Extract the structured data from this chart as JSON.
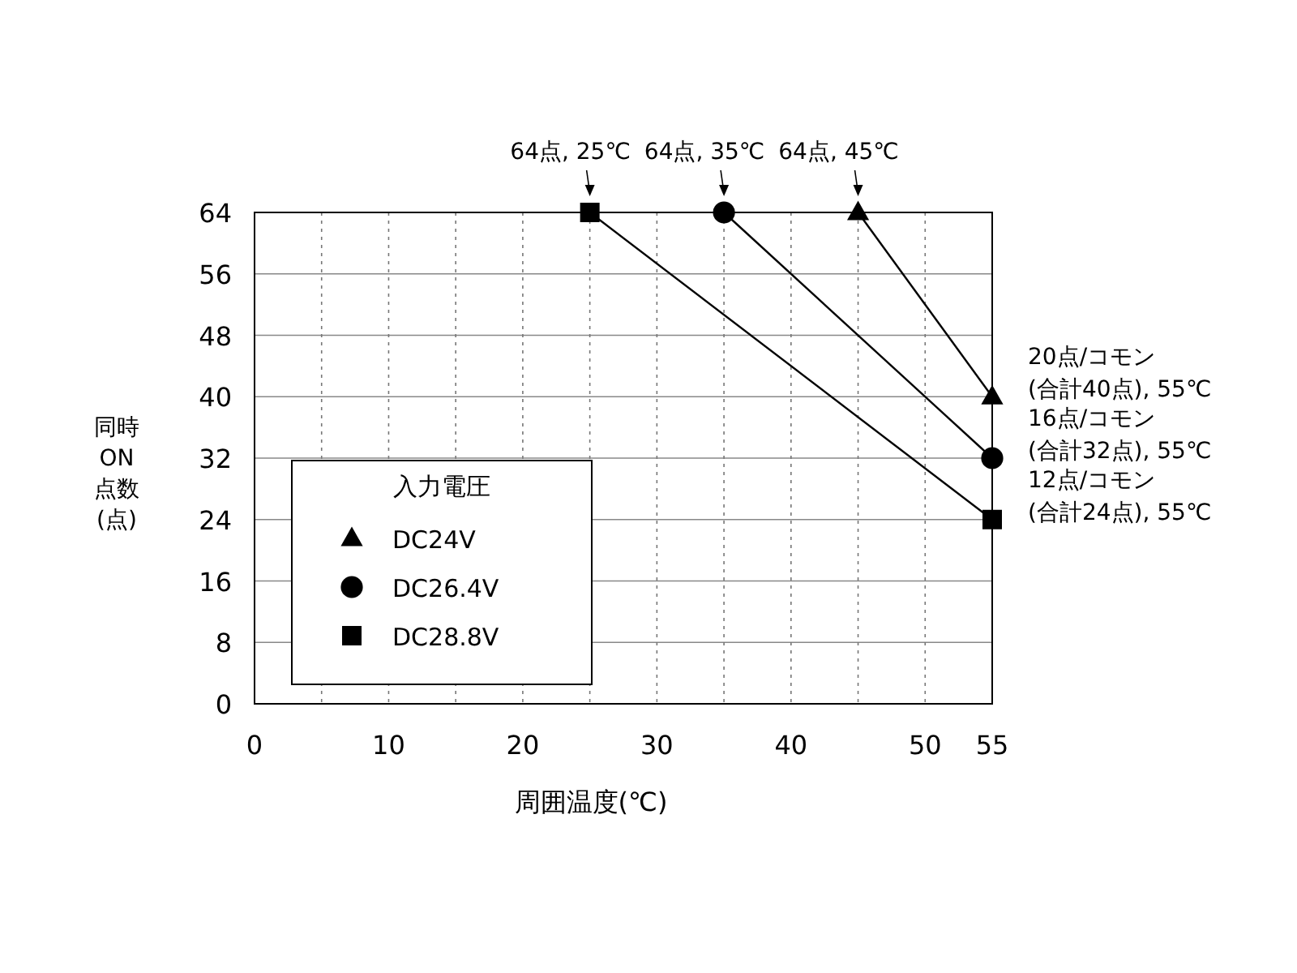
{
  "chart_data": {
    "type": "line",
    "xlabel": "周囲温度(℃)",
    "ylabel": "同時\nON\n点数\n(点)",
    "legend_title": "入力電圧",
    "xlim": [
      0,
      55
    ],
    "xticks": [
      0,
      {
        "value": 5,
        "label": null
      },
      10,
      {
        "value": 15,
        "label": null
      },
      20,
      {
        "value": 25,
        "label": null
      },
      30,
      {
        "value": 35,
        "label": null
      },
      40,
      {
        "value": 45,
        "label": null
      },
      50,
      55
    ],
    "ylim": [
      0,
      64
    ],
    "yticks": [
      0,
      8,
      16,
      24,
      32,
      40,
      48,
      56,
      64
    ],
    "grid": true,
    "legend": "bottom left",
    "line_style": "solid",
    "series": [
      {
        "name": "DC24V",
        "color": "#000000",
        "marker": "triangle",
        "x": [
          45,
          55
        ],
        "values": [
          64,
          40
        ]
      },
      {
        "name": "DC26.4V",
        "color": "#000000",
        "marker": "circle",
        "x": [
          35,
          55
        ],
        "values": [
          64,
          32
        ]
      },
      {
        "name": "DC28.8V",
        "color": "#000000",
        "marker": "square",
        "x": [
          25,
          55
        ],
        "values": [
          64,
          24
        ]
      }
    ],
    "annotations": [
      {
        "text": "64点, 25℃",
        "x": 25,
        "y": 64
      },
      {
        "text": "64点, 35℃",
        "x": 35,
        "y": 64
      },
      {
        "text": "64点, 45℃",
        "x": 45,
        "y": 64
      },
      {
        "text": "20点/コモン\n(合計40点), 55℃",
        "x": 55,
        "y": 40
      },
      {
        "text": "16点/コモン\n(合計32点), 55℃",
        "x": 55,
        "y": 32
      },
      {
        "text": "12点/コモン\n(合計24点), 55℃",
        "x": 55,
        "y": 24
      }
    ]
  }
}
